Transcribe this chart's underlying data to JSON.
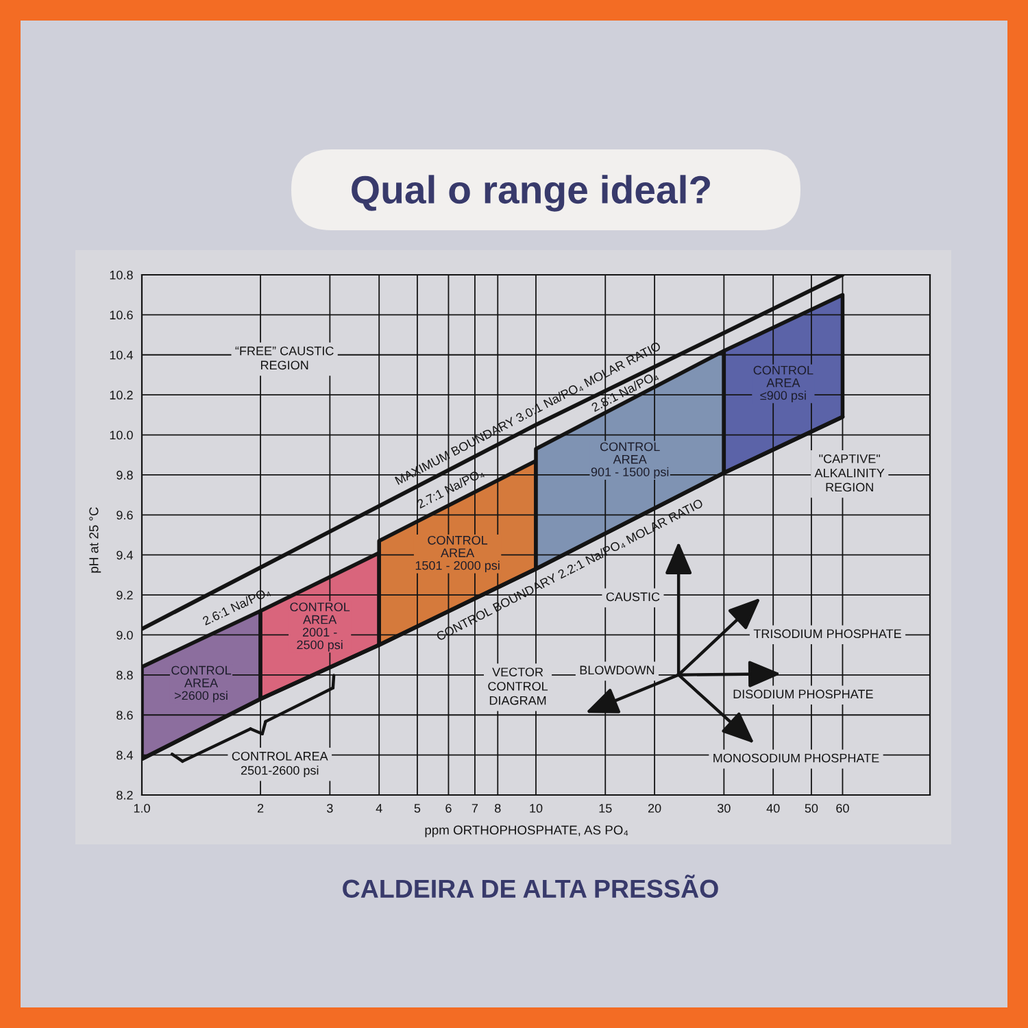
{
  "chart_data": {
    "type": "line",
    "title": "Qual o range ideal?",
    "subtitle": "CALDEIRA DE ALTA PRESSÃO",
    "xlabel": "ppm ORTHOPHOSPHATE, AS PO₄",
    "ylabel": "pH at 25 °C",
    "log": "x",
    "xlim": [
      1,
      100
    ],
    "xticks": [
      {
        "value": 1,
        "label": "1.0"
      },
      2,
      3,
      4,
      5,
      6,
      7,
      8,
      10,
      15,
      20,
      30,
      40,
      50,
      60
    ],
    "ylim": [
      8.2,
      10.8
    ],
    "yticks": [
      8.2,
      8.4,
      8.6,
      8.8,
      {
        "value": 9,
        "label": "9.0"
      },
      9.2,
      9.4,
      9.6,
      9.8,
      {
        "value": 10,
        "label": "10.0"
      },
      10.2,
      10.4,
      10.6,
      10.8
    ],
    "grid": true,
    "series": [
      {
        "type": "area",
        "name": "CONTROL\nAREA\n>2600 psi",
        "color": "#8c6e9e",
        "x": [
          1,
          2
        ],
        "values": [
          8.84,
          9.12
        ]
      },
      {
        "type": "area",
        "name": "CONTROL\nAREA\n2001 -\n2500 psi",
        "color": "#d9657c",
        "x": [
          2,
          4
        ],
        "values": [
          9.12,
          9.41
        ]
      },
      {
        "type": "area",
        "name": "CONTROL\nAREA\n1501 - 2000 psi",
        "color": "#d57a3c",
        "x": [
          4,
          10
        ],
        "values": [
          9.47,
          9.87
        ]
      },
      {
        "type": "area",
        "name": "CONTROL\nAREA\n901 - 1500 psi",
        "color": "#7f93b3",
        "x": [
          10,
          30
        ],
        "values": [
          9.93,
          10.42
        ]
      },
      {
        "type": "area",
        "name": "CONTROL\nAREA\n≤900 psi",
        "color": "#5b63a8",
        "x": [
          30,
          60
        ],
        "values": [
          10.42,
          10.7
        ]
      },
      {
        "name": "MAXIMUM BOUNDARY 3.0:1 Na/PO₄ MOLAR RATIO",
        "color": "#141414",
        "x": [
          1,
          10,
          60
        ],
        "values": [
          9.03,
          10.05,
          10.8
        ]
      },
      {
        "name": "CONTROL BOUNDARY 2.2:1 Na/PO₄ MOLAR RATIO",
        "color": "#141414",
        "x": [
          1,
          2,
          4,
          10,
          30,
          60
        ],
        "values": [
          8.38,
          8.68,
          8.95,
          9.33,
          9.81,
          10.09
        ]
      }
    ],
    "annotations": [
      "“FREE” CAUSTIC\nREGION",
      "\"CAPTIVE\"\nALKALINITY\nREGION",
      "CONTROL AREA\n2501-2600 psi",
      "VECTOR\nCONTROL\nDIAGRAM",
      "CAUSTIC",
      "BLOWDOWN",
      "TRISODIUM PHOSPHATE",
      "DISODIUM PHOSPHATE",
      "MONOSODIUM PHOSPHATE",
      {
        "text": "2.6:1 Na/PO₄",
        "x": 1.8,
        "y": 9.08
      },
      {
        "text": "2.7:1 Na/PO₄",
        "x": 6.3,
        "y": 9.67
      },
      {
        "text": "2.8:1 Na/PO₄",
        "x": 17.3,
        "y": 10.17
      }
    ]
  }
}
